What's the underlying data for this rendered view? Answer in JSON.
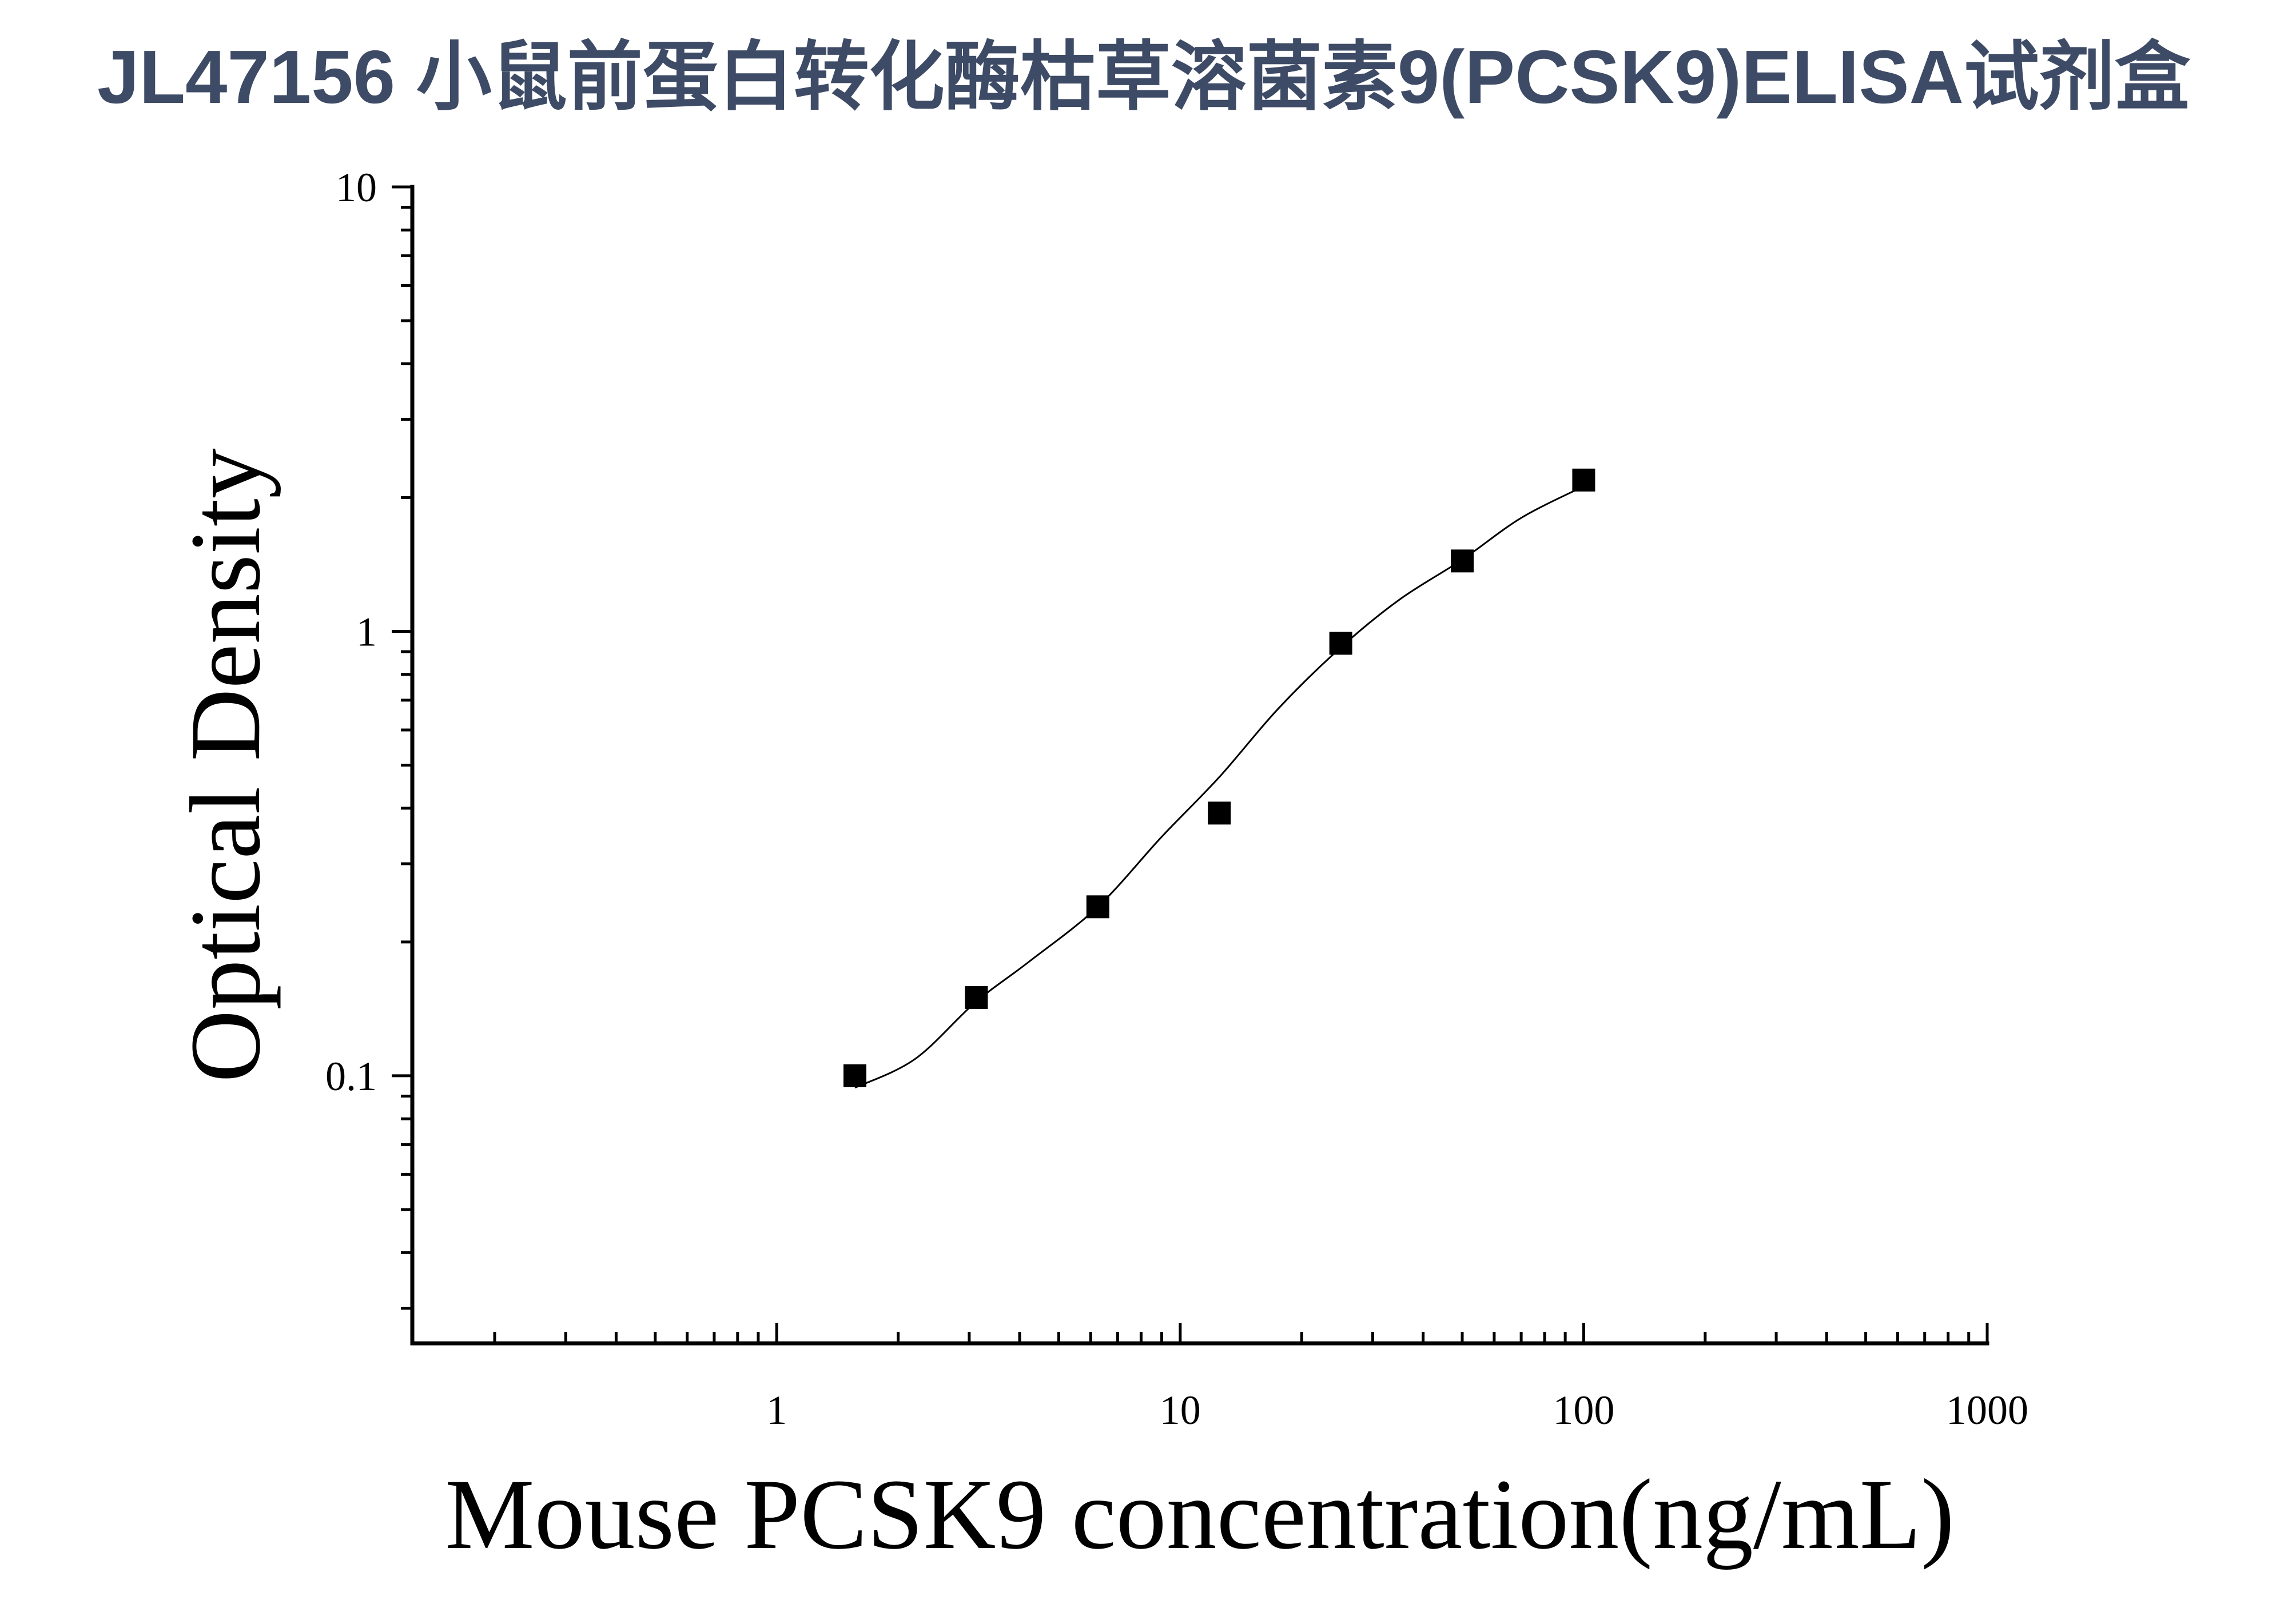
{
  "chart_data": {
    "type": "scatter",
    "title": "JL47156 小鼠前蛋白转化酶枯草溶菌素9(PCSK9)ELISA试剂盒",
    "title_color": "#3e4b66",
    "xlabel": "Mouse PCSK9 concentration(ng/mL)",
    "ylabel": "Optical Density",
    "xscale": "log",
    "yscale": "log",
    "xlim": [
      0.125,
      1000
    ],
    "ylim": [
      0.025,
      10
    ],
    "xticks": [
      1,
      10,
      100,
      1000
    ],
    "xtick_labels": [
      "1",
      "10",
      "100",
      "1000"
    ],
    "yticks": [
      0.1,
      1,
      10
    ],
    "ytick_labels": [
      "0.1",
      "1",
      "10"
    ],
    "grid": false,
    "series": [
      {
        "marker": "square",
        "color": "#000000",
        "x": [
          1.5625,
          3.125,
          6.25,
          12.5,
          25,
          50,
          100
        ],
        "y": [
          0.1,
          0.15,
          0.24,
          0.39,
          0.94,
          1.44,
          2.19
        ]
      }
    ],
    "fit_curve": {
      "color": "#000000",
      "x": [
        1.5625,
        2.2,
        3.1,
        4.2,
        6.25,
        9,
        12.5,
        17.5,
        25,
        35,
        50,
        70,
        100
      ],
      "y": [
        0.094,
        0.109,
        0.146,
        0.18,
        0.24,
        0.345,
        0.47,
        0.67,
        0.92,
        1.18,
        1.45,
        1.8,
        2.12
      ]
    }
  }
}
